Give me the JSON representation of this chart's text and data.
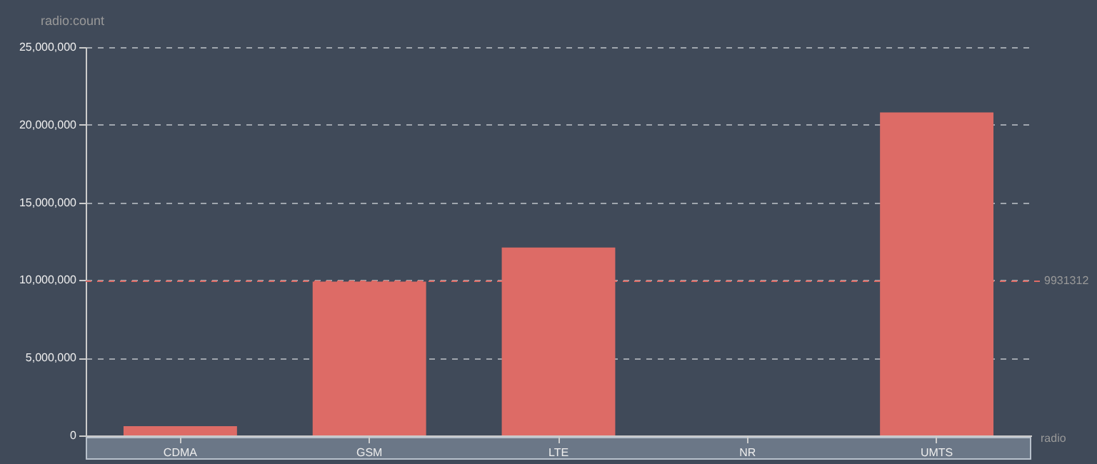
{
  "chart_data": {
    "type": "bar",
    "xlabel": "radio",
    "ylabel": "radio:count",
    "categories": [
      "CDMA",
      "GSM",
      "LTE",
      "NR",
      "UMTS"
    ],
    "series": [
      {
        "color": "#dd6b66",
        "values": [
          600000,
          9900000,
          12100000,
          0,
          20800000
        ]
      }
    ],
    "ylim": [
      0,
      25000000
    ],
    "yticks": [
      {
        "value": 0,
        "label": "0"
      },
      {
        "value": 5000000,
        "label": "5,000,000"
      },
      {
        "value": 10000000,
        "label": "10,000,000"
      },
      {
        "value": 15000000,
        "label": "15,000,000"
      },
      {
        "value": 20000000,
        "label": "20,000,000"
      },
      {
        "value": 25000000,
        "label": "25,000,000"
      }
    ],
    "grid": "y",
    "ref_lines": [
      {
        "axis": "y",
        "value": 9931312,
        "label": "9931312",
        "color": "#dd6b66",
        "line_style": "dashed"
      }
    ]
  }
}
